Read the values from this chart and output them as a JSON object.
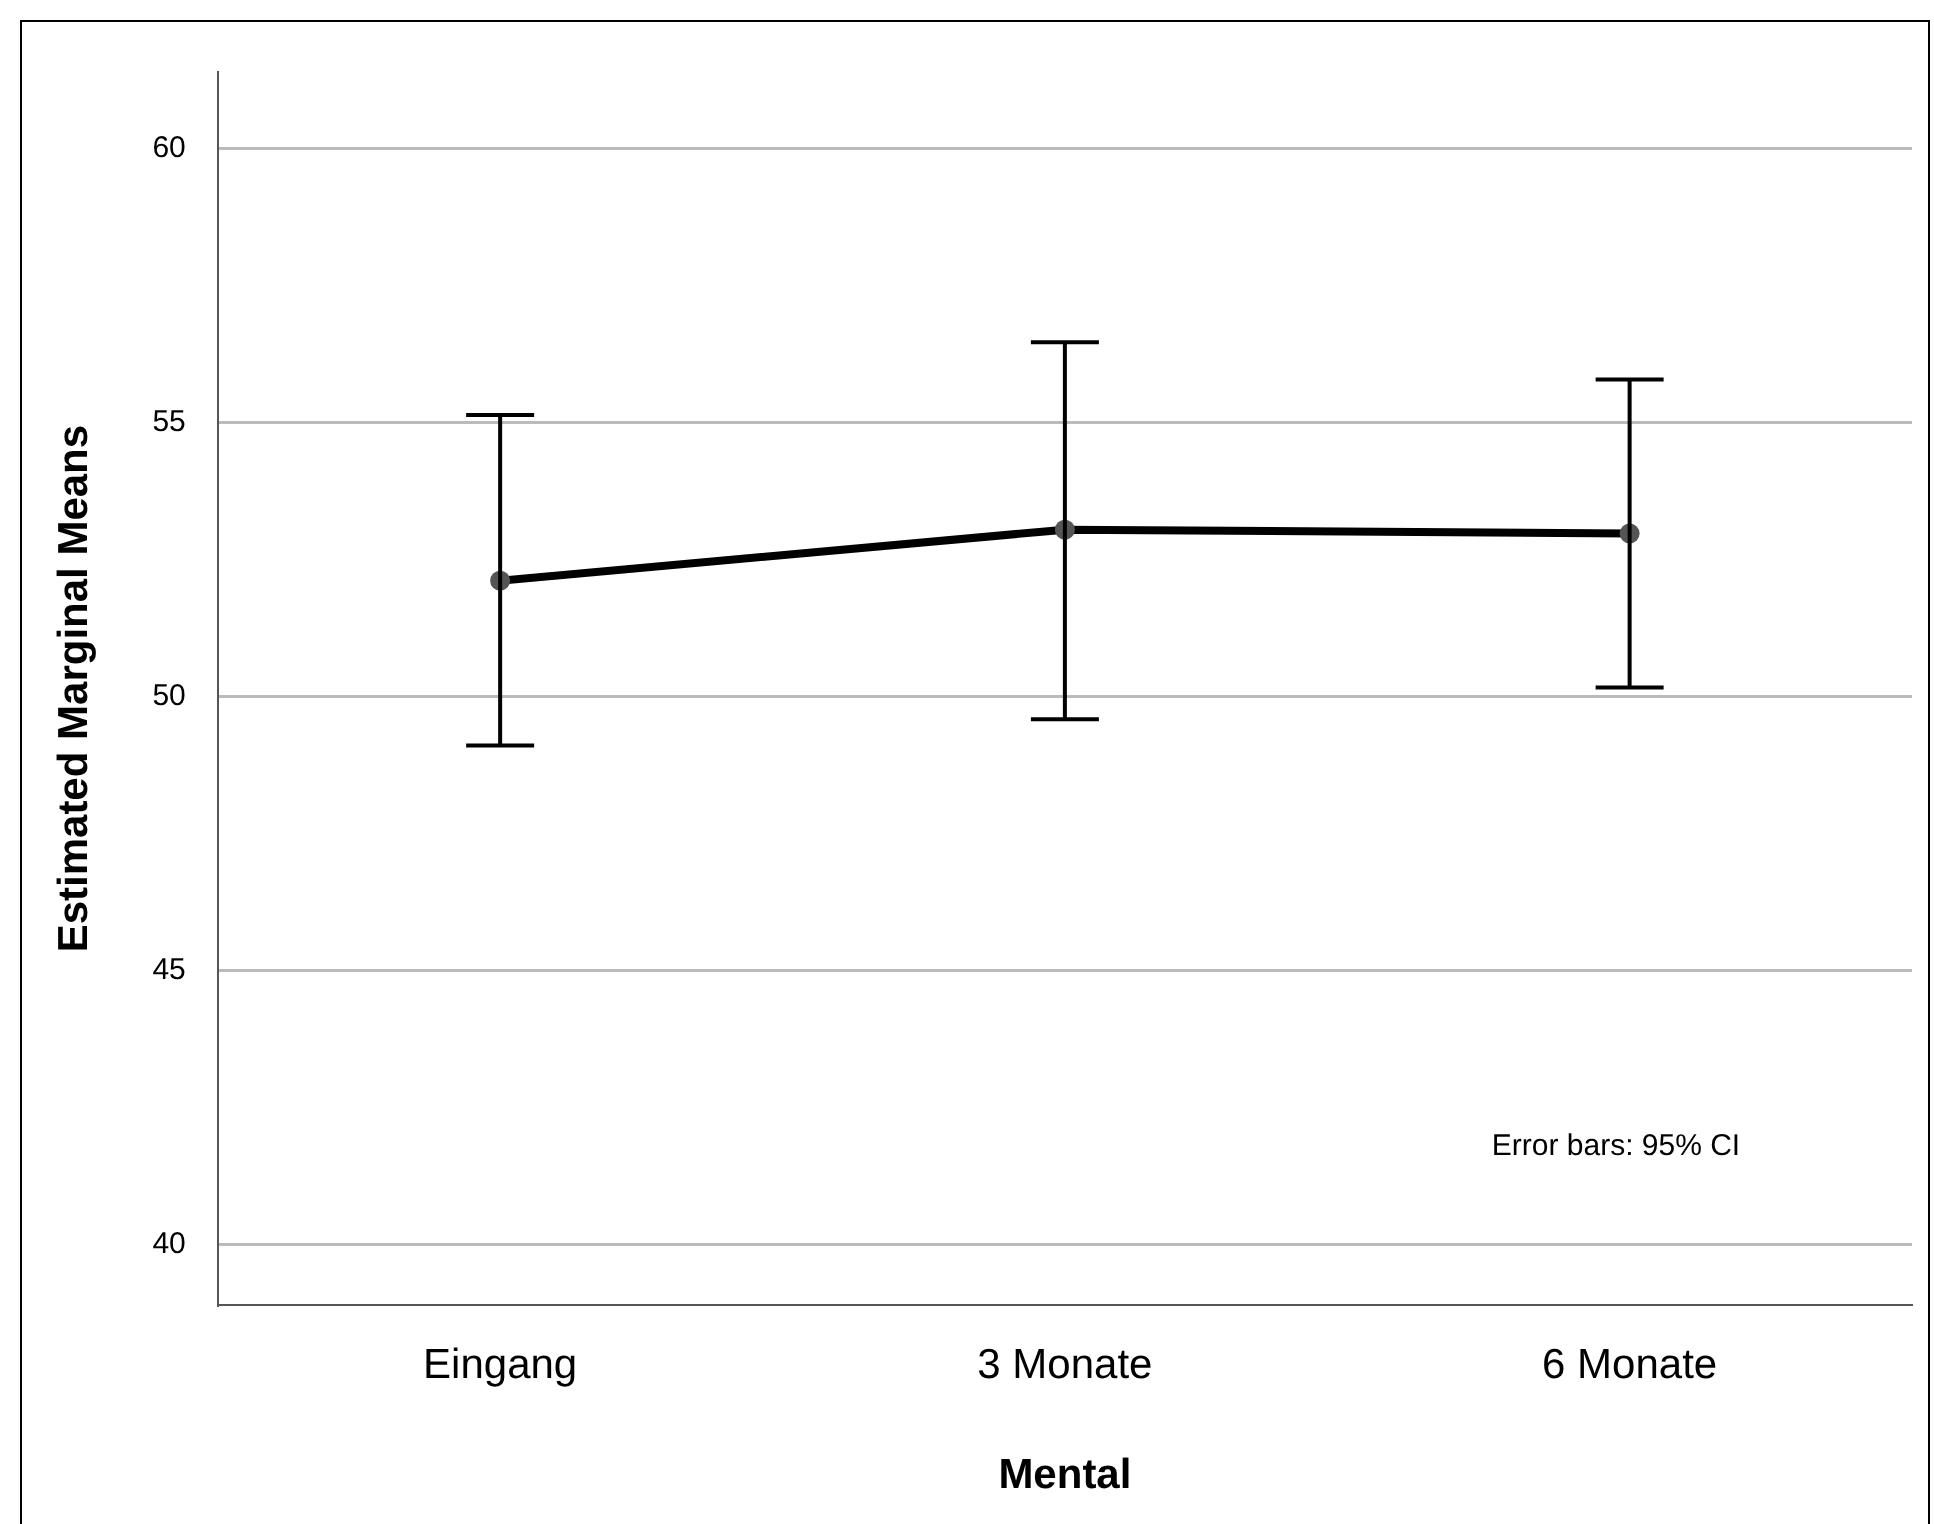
{
  "chart_data": {
    "type": "line",
    "xlabel": "Mental",
    "ylabel": "Estimated Marginal Means",
    "categories": [
      "Eingang",
      "3 Monate",
      "6 Monate"
    ],
    "series": [
      {
        "color": "#000000",
        "values": [
          52.12,
          53.05,
          52.98
        ],
        "errors": [
          [
            49.11,
            55.14
          ],
          [
            49.59,
            56.47
          ],
          [
            50.17,
            55.79
          ]
        ]
      }
    ],
    "ylim": [
      38.9,
      61.4
    ],
    "yticks": [
      40,
      45,
      50,
      55,
      60
    ],
    "grid": "y",
    "marker": "circle",
    "line_style": "solid",
    "annotations": [
      "Error bars: 95% CI"
    ]
  }
}
